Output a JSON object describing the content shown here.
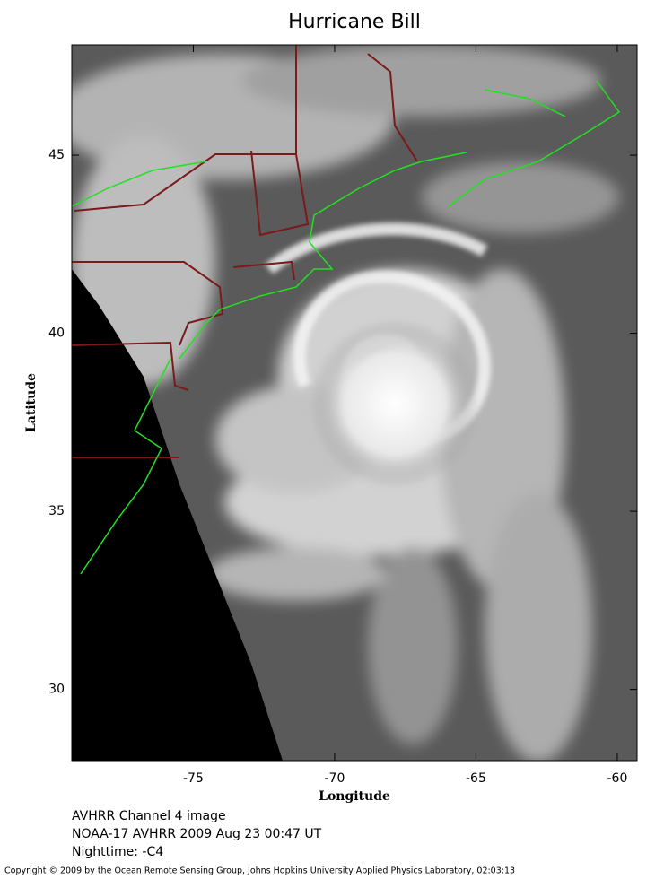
{
  "title": "Hurricane Bill",
  "map": {
    "xlabel": "Longitude",
    "ylabel": "Latitude",
    "xlim": [
      -79.3,
      -59.3
    ],
    "ylim": [
      28,
      48.1
    ],
    "xticks": [
      -75,
      -70,
      -65,
      -60
    ],
    "yticks": [
      30,
      35,
      40,
      45
    ]
  },
  "captions": [
    "AVHRR Channel 4 image",
    "NOAA-17 AVHRR 2009 Aug 23 00:47 UT",
    "Nighttime: -C4"
  ],
  "copyright": "Copyright © 2009 by the Ocean Remote Sensing Group, Johns Hopkins University Applied Physics Laboratory, 02:03:13"
}
